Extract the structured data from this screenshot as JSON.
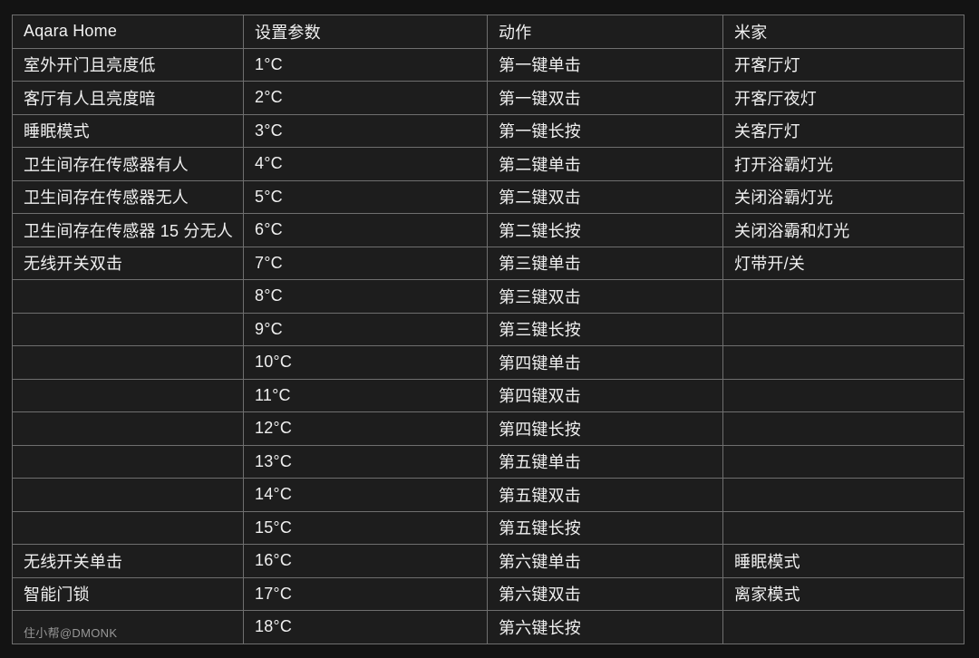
{
  "table": {
    "headers": [
      "Aqara Home",
      "设置参数",
      "动作",
      "米家"
    ],
    "rows": [
      [
        "室外开门且亮度低",
        "1°C",
        "第一键单击",
        "开客厅灯"
      ],
      [
        "客厅有人且亮度暗",
        "2°C",
        "第一键双击",
        "开客厅夜灯"
      ],
      [
        "睡眠模式",
        "3°C",
        "第一键长按",
        "关客厅灯"
      ],
      [
        "卫生间存在传感器有人",
        "4°C",
        "第二键单击",
        "打开浴霸灯光"
      ],
      [
        "卫生间存在传感器无人",
        "5°C",
        "第二键双击",
        "关闭浴霸灯光"
      ],
      [
        "卫生间存在传感器 15 分无人",
        "6°C",
        "第二键长按",
        "关闭浴霸和灯光"
      ],
      [
        "无线开关双击",
        "7°C",
        "第三键单击",
        "灯带开/关"
      ],
      [
        "",
        "8°C",
        "第三键双击",
        ""
      ],
      [
        "",
        "9°C",
        "第三键长按",
        ""
      ],
      [
        "",
        "10°C",
        "第四键单击",
        ""
      ],
      [
        "",
        "11°C",
        "第四键双击",
        ""
      ],
      [
        "",
        "12°C",
        "第四键长按",
        ""
      ],
      [
        "",
        "13°C",
        "第五键单击",
        ""
      ],
      [
        "",
        "14°C",
        "第五键双击",
        ""
      ],
      [
        "",
        "15°C",
        "第五键长按",
        ""
      ],
      [
        "无线开关单击",
        "16°C",
        "第六键单击",
        "睡眠模式"
      ],
      [
        "智能门锁",
        "17°C",
        "第六键双击",
        "离家模式"
      ],
      [
        "",
        "18°C",
        "第六键长按",
        ""
      ]
    ]
  },
  "watermark": "住小帮@DMONK",
  "colors": {
    "page_bg": "#131313",
    "cell_bg": "#1d1d1d",
    "border": "#6f6f6f",
    "text": "#f0f0f0",
    "watermark_text": "#979797"
  }
}
